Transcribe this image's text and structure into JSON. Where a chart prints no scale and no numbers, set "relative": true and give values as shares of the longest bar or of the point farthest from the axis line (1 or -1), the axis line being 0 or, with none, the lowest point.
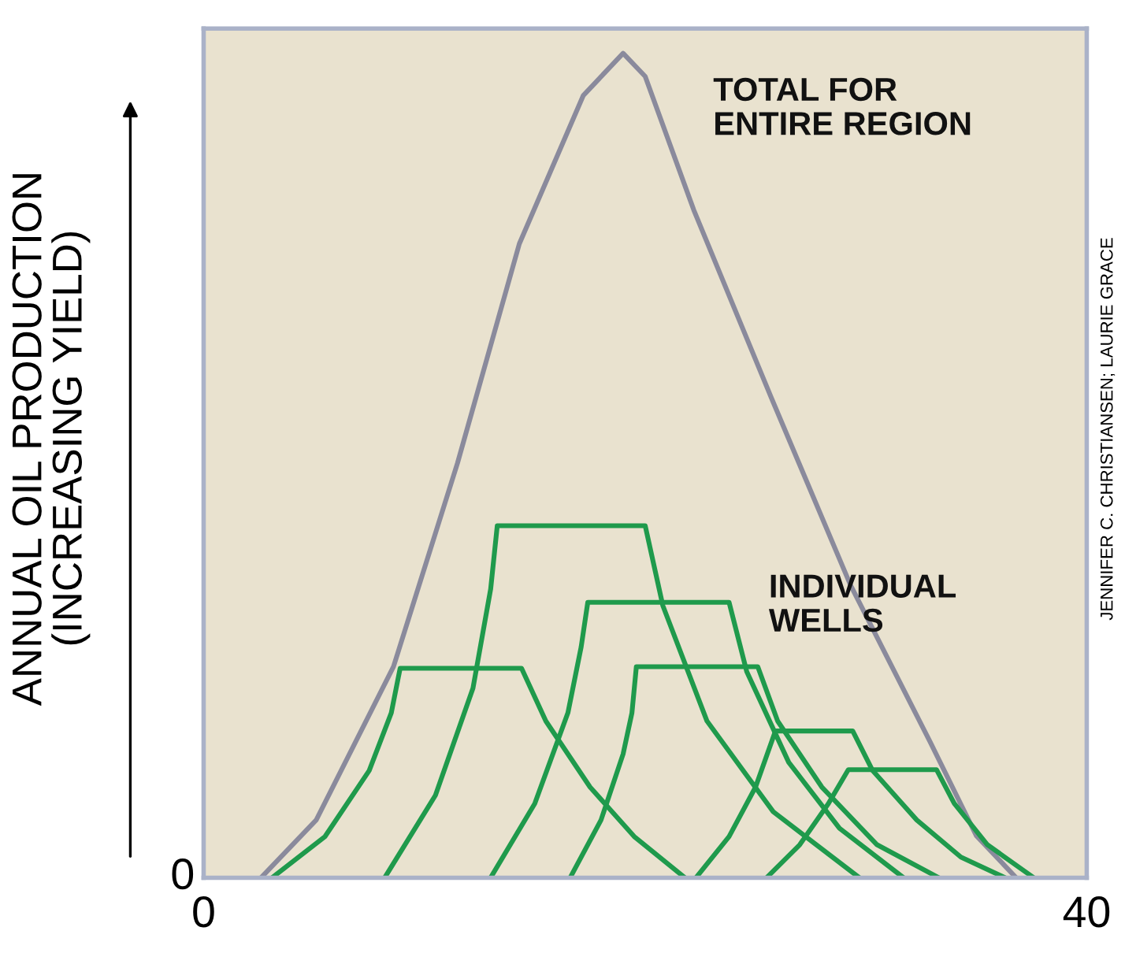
{
  "chart_data": {
    "type": "line",
    "relative": true,
    "ylabel": "ANNUAL OIL PRODUCTION\n(INCREASING YIELD)",
    "xlim": [
      0,
      40
    ],
    "xticks": [
      0,
      40
    ],
    "legend": false,
    "marker": "none",
    "line_style": "solid",
    "series": [
      {
        "color": "#8a8a9c",
        "x": [
          2.6,
          5.1,
          8.6,
          11.5,
          14.3,
          17.2,
          19.0,
          20.0,
          22.2,
          25.7,
          29.3,
          32.9,
          35.0,
          36.8
        ],
        "values": [
          0,
          0.07,
          0.256,
          0.503,
          0.769,
          0.949,
          1,
          0.972,
          0.81,
          0.583,
          0.355,
          0.165,
          0.051,
          0
        ]
      },
      {
        "color": "#1f9a4c",
        "x": [
          3.1,
          5.5,
          7.5,
          8.5,
          8.9,
          14.4,
          15.5,
          17.5,
          19.5,
          21.8
        ],
        "values": [
          0,
          0.05,
          0.13,
          0.2,
          0.254,
          0.254,
          0.19,
          0.11,
          0.05,
          0
        ]
      },
      {
        "color": "#1f9a4c",
        "x": [
          8.2,
          10.5,
          12.2,
          13.0,
          13.3,
          20.0,
          20.8,
          22.8,
          25.8,
          29.7
        ],
        "values": [
          0,
          0.1,
          0.23,
          0.35,
          0.427,
          0.427,
          0.33,
          0.19,
          0.08,
          0
        ]
      },
      {
        "color": "#1f9a4c",
        "x": [
          13.0,
          15.0,
          16.5,
          17.1,
          17.4,
          23.8,
          24.6,
          26.5,
          28.8,
          31.7
        ],
        "values": [
          0,
          0.09,
          0.2,
          0.28,
          0.334,
          0.334,
          0.25,
          0.14,
          0.06,
          0
        ]
      },
      {
        "color": "#1f9a4c",
        "x": [
          16.6,
          18.0,
          19.0,
          19.4,
          19.6,
          25.1,
          26.0,
          28.0,
          30.5,
          33.3
        ],
        "values": [
          0,
          0.07,
          0.15,
          0.2,
          0.256,
          0.256,
          0.19,
          0.11,
          0.04,
          0
        ]
      },
      {
        "color": "#1f9a4c",
        "x": [
          22.3,
          23.8,
          25.0,
          25.9,
          29.4,
          30.3,
          32.3,
          34.3,
          36.3
        ],
        "values": [
          0,
          0.05,
          0.11,
          0.178,
          0.178,
          0.13,
          0.07,
          0.025,
          0
        ]
      },
      {
        "color": "#1f9a4c",
        "x": [
          25.5,
          27.0,
          28.3,
          29.2,
          33.2,
          34.0,
          35.5,
          37.6
        ],
        "values": [
          0,
          0.04,
          0.09,
          0.131,
          0.131,
          0.09,
          0.04,
          0
        ]
      }
    ],
    "annotations": [
      "TOTAL FOR\nENTIRE REGION",
      "INDIVIDUAL\nWELLS",
      "0",
      "JENNIFER C. CHRISTIANSEN; LAURIE GRACE"
    ]
  }
}
